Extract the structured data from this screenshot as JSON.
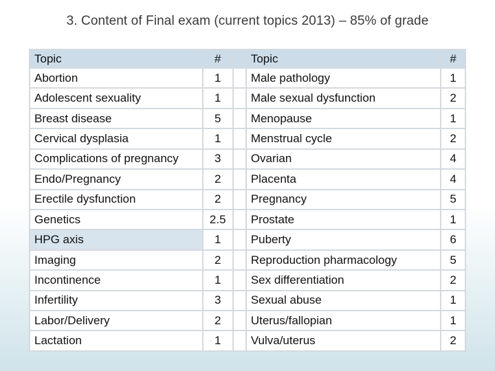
{
  "title": "3. Content of Final exam (current topics 2013) – 85% of grade",
  "colors": {
    "header_row": "#ccdde9",
    "cell_background": "#ffffff",
    "grid": "#d5dadf",
    "text": "#111111"
  },
  "table": {
    "headers": {
      "topic_left": "Topic",
      "count_left": "#",
      "topic_right": "Topic",
      "count_right": "#"
    },
    "rows": [
      {
        "topic_left": "Abortion",
        "count_left": "1",
        "topic_right": "Male pathology",
        "count_right": "1"
      },
      {
        "topic_left": "Adolescent sexuality",
        "count_left": "1",
        "topic_right": "Male sexual dysfunction",
        "count_right": "2"
      },
      {
        "topic_left": "Breast disease",
        "count_left": "5",
        "topic_right": "Menopause",
        "count_right": "1"
      },
      {
        "topic_left": "Cervical dysplasia",
        "count_left": "1",
        "topic_right": "Menstrual cycle",
        "count_right": "2"
      },
      {
        "topic_left": "Complications of pregnancy",
        "count_left": "3",
        "topic_right": "Ovarian",
        "count_right": "4"
      },
      {
        "topic_left": "Endo/Pregnancy",
        "count_left": "2",
        "topic_right": "Placenta",
        "count_right": "4"
      },
      {
        "topic_left": "Erectile dysfunction",
        "count_left": "2",
        "topic_right": "Pregnancy",
        "count_right": "5"
      },
      {
        "topic_left": "Genetics",
        "count_left": "2.5",
        "topic_right": "Prostate",
        "count_right": "1"
      },
      {
        "topic_left": "HPG axis",
        "count_left": "1",
        "topic_right": "Puberty",
        "count_right": "6"
      },
      {
        "topic_left": "Imaging",
        "count_left": "2",
        "topic_right": "Reproduction pharmacology",
        "count_right": "5"
      },
      {
        "topic_left": "Incontinence",
        "count_left": "1",
        "topic_right": "Sex differentiation",
        "count_right": "2"
      },
      {
        "topic_left": "Infertility",
        "count_left": "3",
        "topic_right": "Sexual abuse",
        "count_right": "1"
      },
      {
        "topic_left": "Labor/Delivery",
        "count_left": "2",
        "topic_right": "Uterus/fallopian",
        "count_right": "1"
      },
      {
        "topic_left": "Lactation",
        "count_left": "1",
        "topic_right": "Vulva/uterus",
        "count_right": "2"
      }
    ]
  }
}
